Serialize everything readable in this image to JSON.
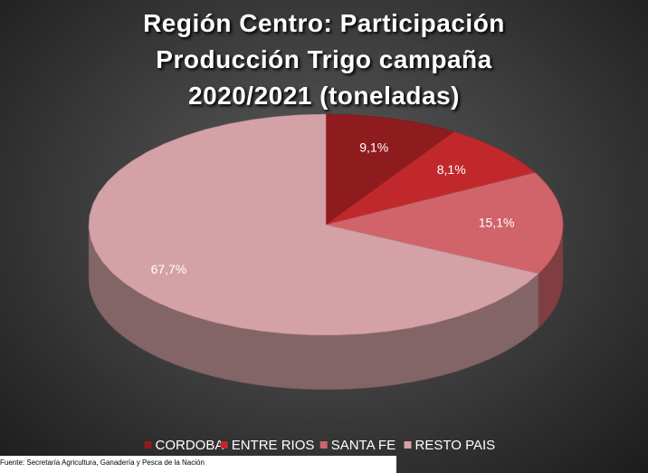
{
  "chart_data": {
    "type": "pie",
    "title": "Región Centro: Participación Producción Trigo campaña 2020/2021 (toneladas)",
    "categories": [
      "CORDOBA",
      "ENTRE RIOS",
      "SANTA FE",
      "RESTO PAIS"
    ],
    "values": [
      9.1,
      8.1,
      15.1,
      67.7
    ],
    "value_labels": [
      "9,1%",
      "8,1%",
      "15,1%",
      "67,7%"
    ],
    "colors": [
      "#8e1c1f",
      "#c1282c",
      "#d0646a",
      "#d4a1a6"
    ],
    "legend": "bottom",
    "source": "Fuente: Secretaría Agricultura, Ganadería y Pesca de la Nación"
  }
}
